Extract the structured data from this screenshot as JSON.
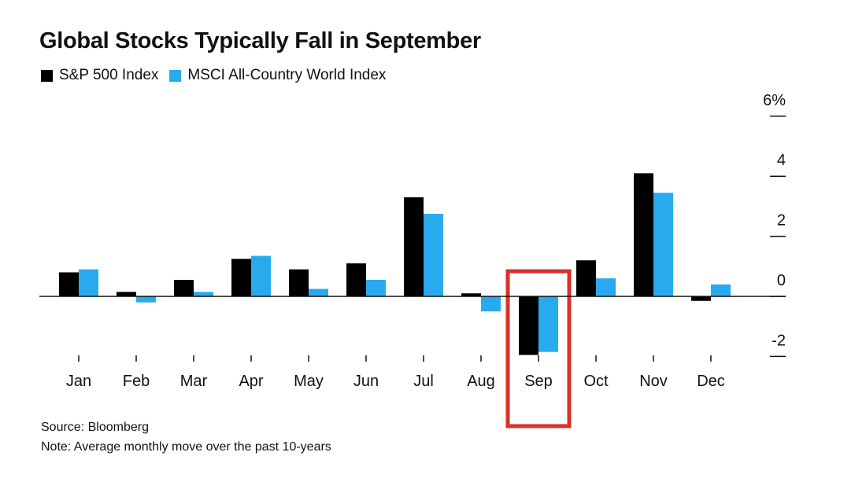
{
  "chart_data": {
    "type": "bar",
    "title": "Global Stocks Typically Fall in September",
    "categories": [
      "Jan",
      "Feb",
      "Mar",
      "Apr",
      "May",
      "Jun",
      "Jul",
      "Aug",
      "Sep",
      "Oct",
      "Nov",
      "Dec"
    ],
    "series": [
      {
        "name": "S&P 500 Index",
        "color": "#000000",
        "values": [
          0.8,
          0.15,
          0.55,
          1.25,
          0.9,
          1.1,
          3.3,
          0.1,
          -1.95,
          1.2,
          4.1,
          -0.15
        ]
      },
      {
        "name": "MSCI All-Country World Index",
        "color": "#29aaef",
        "values": [
          0.9,
          -0.2,
          0.15,
          1.35,
          0.25,
          0.55,
          2.75,
          -0.5,
          -1.85,
          0.6,
          3.45,
          0.4
        ]
      }
    ],
    "y_ticks": [
      "6%",
      "4",
      "2",
      "0",
      "-2"
    ],
    "y_tick_values": [
      6,
      4,
      2,
      0,
      -2
    ],
    "ylim": [
      -2,
      6
    ],
    "y_axis_side": "right",
    "highlight_category": "Sep",
    "highlight_color": "#d9302a",
    "legend_position": "top-left",
    "grid": false,
    "source": "Source: Bloomberg",
    "note": "Note: Average monthly move over the past 10-years"
  }
}
